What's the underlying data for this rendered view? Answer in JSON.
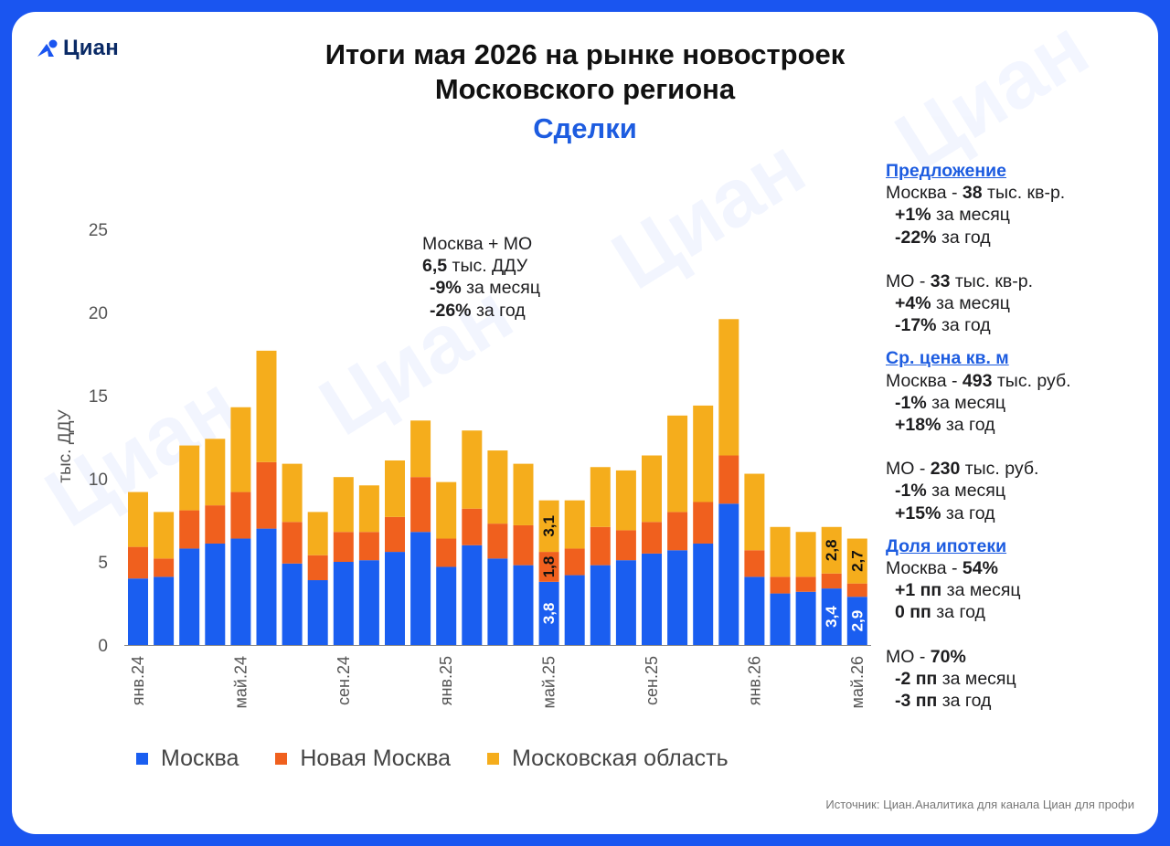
{
  "brand": {
    "logo_text": "Циан",
    "watermark_text": "Циан",
    "color": "#1a55f0"
  },
  "header": {
    "title_line1": "Итоги мая 2026 на рынке новостроек",
    "title_line2": "Московского региона",
    "subtitle": "Сделки"
  },
  "annotation": {
    "l1": "Москва + МО",
    "l2_value": "6,5",
    "l2_unit": " тыс. ДДУ",
    "l3_value": "-9%",
    "l3_text": " за месяц",
    "l4_value": "-26%",
    "l4_text": " за год"
  },
  "side": {
    "offer": {
      "heading": "Предложение",
      "msk_name": "Москва - ",
      "msk_value": "38",
      "msk_unit": " тыс. кв-р.",
      "msk_m_value": "+1%",
      "msk_m_text": " за месяц",
      "msk_y_value": "-22%",
      "msk_y_text": " за год",
      "mo_name": "МО - ",
      "mo_value": "33",
      "mo_unit": " тыс. кв-р.",
      "mo_m_value": "+4%",
      "mo_m_text": " за месяц",
      "mo_y_value": "-17%",
      "mo_y_text": " за год"
    },
    "price": {
      "heading": "Ср. цена кв. м",
      "msk_name": "Москва - ",
      "msk_value": "493",
      "msk_unit": " тыс. руб.",
      "msk_m_value": "-1%",
      "msk_m_text": " за месяц",
      "msk_y_value": "+18%",
      "msk_y_text": " за год",
      "mo_name": "МО - ",
      "mo_value": "230",
      "mo_unit": " тыс. руб.",
      "mo_m_value": "-1%",
      "mo_m_text": " за месяц",
      "mo_y_value": "+15%",
      "mo_y_text": " за год"
    },
    "mortgage": {
      "heading": "Доля ипотеки",
      "msk_name": "Москва - ",
      "msk_value": "54%",
      "msk_m_value": "+1 пп",
      "msk_m_text": " за месяц",
      "msk_y_value": "0 пп",
      "msk_y_text": " за год",
      "mo_name": "МО - ",
      "mo_value": "70%",
      "mo_m_value": "-2 пп",
      "mo_m_text": " за месяц",
      "mo_y_value": "-3 пп",
      "mo_y_text": " за год"
    }
  },
  "source": "Источник: Циан.Аналитика для канала Циан для профи",
  "chart_data": {
    "type": "bar",
    "stacked": true,
    "ylabel": "тыс. ДДУ",
    "ylim": [
      0,
      25
    ],
    "yticks": [
      0,
      5,
      10,
      15,
      20,
      25
    ],
    "grid": false,
    "legend_position": "bottom",
    "x_tick_labels": [
      "янв.24",
      "май.24",
      "сен.24",
      "янв.25",
      "май.25",
      "сен.25",
      "янв.26",
      "май.26"
    ],
    "x_tick_indices": [
      0,
      4,
      8,
      12,
      16,
      20,
      24,
      28
    ],
    "categories": [
      "янв.24",
      "фев.24",
      "мар.24",
      "апр.24",
      "май.24",
      "июн.24",
      "июл.24",
      "авг.24",
      "сен.24",
      "окт.24",
      "ноя.24",
      "дек.24",
      "янв.25",
      "фев.25",
      "мар.25",
      "апр.25",
      "май.25",
      "июн.25",
      "июл.25",
      "авг.25",
      "сен.25",
      "окт.25",
      "ноя.25",
      "дек.25",
      "янв.26",
      "фев.26",
      "мар.26",
      "апр.26",
      "май.26"
    ],
    "series": [
      {
        "name": "Москва",
        "color": "#1a5ef0",
        "values": [
          4.0,
          4.1,
          5.8,
          6.1,
          6.4,
          7.0,
          4.9,
          3.9,
          5.0,
          5.1,
          5.6,
          6.8,
          4.7,
          6.0,
          5.2,
          4.8,
          3.8,
          4.2,
          4.8,
          5.1,
          5.5,
          5.7,
          6.1,
          8.5,
          4.1,
          3.1,
          3.2,
          3.4,
          2.9
        ]
      },
      {
        "name": "Новая Москва",
        "color": "#f0601e",
        "values": [
          1.9,
          1.1,
          2.3,
          2.3,
          2.8,
          4.0,
          2.5,
          1.5,
          1.8,
          1.7,
          2.1,
          3.3,
          1.7,
          2.2,
          2.1,
          2.4,
          1.8,
          1.6,
          2.3,
          1.8,
          1.9,
          2.3,
          2.5,
          2.9,
          1.6,
          1.0,
          0.9,
          0.9,
          0.8
        ]
      },
      {
        "name": "Московская область",
        "color": "#f5ad1c",
        "values": [
          3.3,
          2.8,
          3.9,
          4.0,
          5.1,
          6.7,
          3.5,
          2.6,
          3.3,
          2.8,
          3.4,
          3.4,
          3.4,
          4.7,
          4.4,
          3.7,
          3.1,
          2.9,
          3.6,
          3.6,
          4.0,
          5.8,
          5.8,
          8.2,
          4.6,
          3.0,
          2.7,
          2.8,
          2.7
        ]
      }
    ],
    "data_labels": [
      {
        "index": 16,
        "values": [
          "3,8",
          "1,8",
          "3,1"
        ]
      },
      {
        "index": 27,
        "values": [
          "3,4",
          null,
          "2,8"
        ]
      },
      {
        "index": 28,
        "values": [
          "2,9",
          null,
          "2,7"
        ]
      }
    ]
  }
}
